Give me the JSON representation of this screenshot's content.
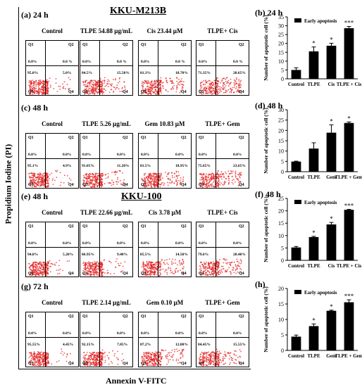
{
  "labels": {
    "y_axis": "Propidium Iodine (PI)",
    "x_axis": "Annexin V-FITC"
  },
  "sections": {
    "kku_m213b": "KKU-M213B",
    "kku_100": "KKU-100"
  },
  "flow_rows": [
    {
      "id": "a",
      "label": "(a) 24 h",
      "headers": [
        "Control",
        "TLPE 54.88 µg/mL",
        "Cis 23.44 µM",
        "TLPE+ Cis"
      ],
      "plots": [
        {
          "q1": "0.0%",
          "q2": "0.0 %",
          "q3": "95.0%",
          "q4": "5.0%"
        },
        {
          "q1": "0.0%",
          "q2": "0.0 %",
          "q3": "84.5%",
          "q4": "15.50%"
        },
        {
          "q1": "0.0%",
          "q2": "0.0 %",
          "q3": "81.3%",
          "q4": "18.70%"
        },
        {
          "q1": "0.0%",
          "q2": "0.0 %",
          "q3": "71.35%",
          "q4": "28.65%"
        }
      ]
    },
    {
      "id": "c",
      "label": "(c) 48 h",
      "headers": [
        "Control",
        "TLPE 5.26 µg/mL",
        "Gem 10.83 µM",
        "TLPE+ Gem"
      ],
      "plots": [
        {
          "q1": "0.0%",
          "q2": "0.0%",
          "q3": "95.1%",
          "q4": "4.9%"
        },
        {
          "q1": "0.0%",
          "q2": "0.0%",
          "q3": "91.05%",
          "q4": "11.20%"
        },
        {
          "q1": "0.0%",
          "q2": "0.0%",
          "q3": "81.5%",
          "q4": "18.95%"
        },
        {
          "q1": "0.0%",
          "q2": "0.0%",
          "q3": "75.65%",
          "q4": "23.65%"
        }
      ]
    },
    {
      "id": "e",
      "label": "(e) 48 h",
      "headers": [
        "Control",
        "TLPE 22.66 µg/mL",
        "Cis 3.78 µM",
        "TLPE+ Cis"
      ],
      "plots": [
        {
          "q1": "0.0%",
          "q2": "0.0%",
          "q3": "94.8%",
          "q4": "5.20%"
        },
        {
          "q1": "0.0%",
          "q2": "0.0%",
          "q3": "86.95%",
          "q4": "9.40%"
        },
        {
          "q1": "0.0%",
          "q2": "0.0%",
          "q3": "85.5%",
          "q4": "14.50%"
        },
        {
          "q1": "0.0%",
          "q2": "0.0%",
          "q3": "79.6%",
          "q4": "20.40%"
        }
      ]
    },
    {
      "id": "g",
      "label": "(g) 72 h",
      "headers": [
        "Control",
        "TLPE 2.14 µg/mL",
        "Gem 0.10 µM",
        "TLPE+ Gem"
      ],
      "plots": [
        {
          "q1": "0.0%",
          "q2": "0.0%",
          "q3": "95.55%",
          "q4": "4.45%"
        },
        {
          "q1": "0.0%",
          "q2": "0.0%",
          "q3": "92.15%",
          "q4": "7.85%"
        },
        {
          "q1": "0.0%",
          "q2": "0.0%",
          "q3": "87.2%",
          "q4": "12.80%"
        },
        {
          "q1": "0.0%",
          "q2": "0.0%",
          "q3": "84.45%",
          "q4": "15.55%"
        }
      ]
    }
  ],
  "quadrant_names": [
    "Q1",
    "Q2",
    "Q3",
    "Q4"
  ],
  "chart_data": [
    {
      "panel": "(b) 24 h",
      "type": "bar",
      "legend": "Early apoptosis",
      "ylabel": "Number of apoptotic cell (%)",
      "categories": [
        "Control",
        "TLPE",
        "Cis",
        "TLPE + Cis"
      ],
      "values": [
        5.0,
        15.5,
        18.7,
        28.6
      ],
      "errors": [
        1.2,
        2.5,
        1.4,
        1.0
      ],
      "significance": [
        "",
        "*",
        "*",
        "***"
      ],
      "ylim": [
        0,
        35
      ],
      "yticks": [
        "0",
        "5",
        "10",
        "15",
        "20",
        "25",
        "30",
        "35"
      ]
    },
    {
      "panel": "(d) 48 h",
      "type": "bar",
      "legend": "",
      "ylabel": "Number of apoptotic cell (%)",
      "categories": [
        "Control",
        "TLPE",
        "Gem",
        "TLPE + Gem"
      ],
      "values": [
        4.9,
        11.2,
        18.9,
        23.6
      ],
      "errors": [
        0.2,
        2.8,
        3.8,
        0.5
      ],
      "significance": [
        "",
        "",
        "*",
        "*"
      ],
      "ylim": [
        0,
        30
      ],
      "yticks": [
        "0",
        "5",
        "10",
        "15",
        "20",
        "25",
        "30"
      ]
    },
    {
      "panel": "(f) 48 h",
      "type": "bar",
      "legend": "Early apoptosis",
      "ylabel": "Number of apoptotic cell (%)",
      "categories": [
        "Control",
        "TLPE",
        "Cis",
        "TLPE + Cis"
      ],
      "values": [
        5.2,
        9.4,
        14.5,
        20.4
      ],
      "errors": [
        0.4,
        0.3,
        0.8,
        0.2
      ],
      "significance": [
        "",
        "*",
        "*",
        "***"
      ],
      "ylim": [
        0,
        25
      ],
      "yticks": [
        "0",
        "5",
        "10",
        "15",
        "20",
        "25"
      ]
    },
    {
      "panel": "(h)",
      "type": "bar",
      "legend": "Early apoptosis",
      "ylabel": "Number of apoptotic cell (%)",
      "categories": [
        "Control",
        "TLPE",
        "Gem",
        "TLPE + Gem"
      ],
      "values": [
        4.45,
        7.85,
        12.8,
        15.55
      ],
      "errors": [
        0.5,
        0.7,
        0.2,
        0.8
      ],
      "significance": [
        "",
        "*",
        "*",
        "***"
      ],
      "ylim": [
        0,
        20
      ],
      "yticks": [
        "0",
        "5",
        "10",
        "15",
        "20"
      ]
    }
  ]
}
